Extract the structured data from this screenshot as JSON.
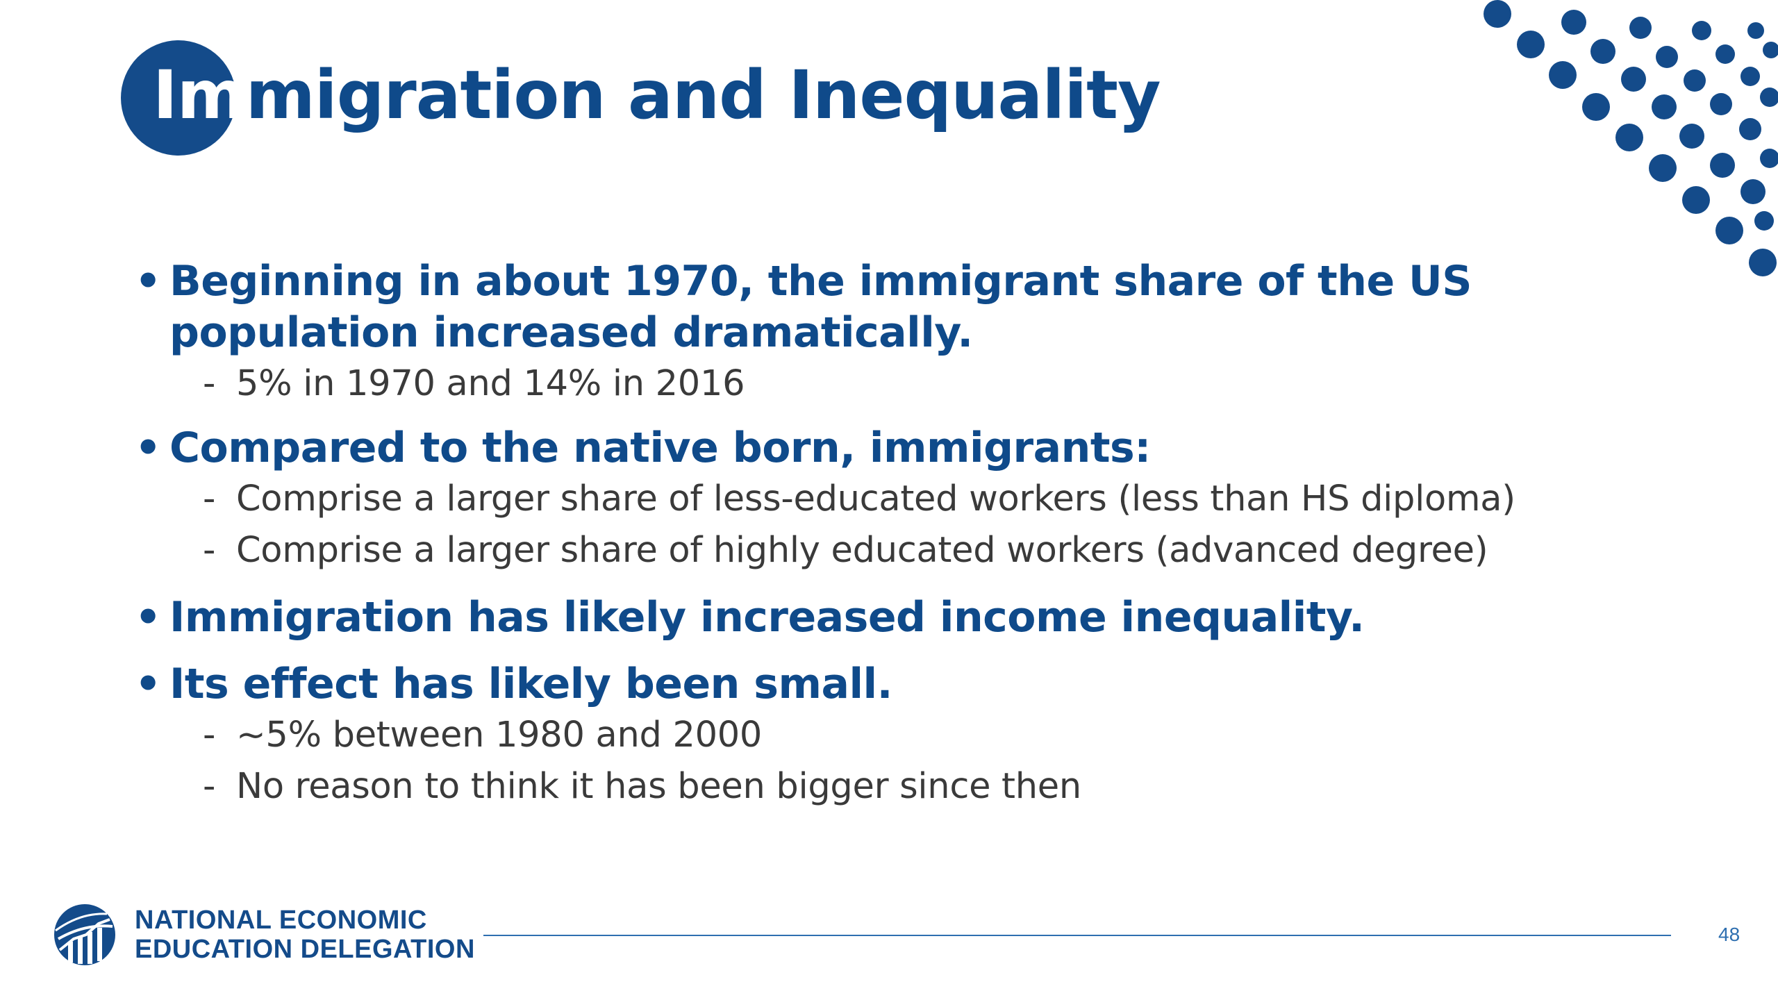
{
  "colors": {
    "accent": "#144b8a",
    "title_text": "#0f4a8a",
    "body_text": "#3a3a3a",
    "logo_text": "#144b8a",
    "rule": "#2e6fb0",
    "background": "#ffffff"
  },
  "title": {
    "highlight": "Im",
    "rest": "migration and Inequality"
  },
  "bullets": [
    {
      "text": "Beginning in about 1970, the immigrant share of the US population increased dramatically.",
      "subs": [
        "5% in 1970 and 14% in 2016"
      ]
    },
    {
      "text": "Compared to the native born, immigrants:",
      "subs": [
        "Comprise a larger share of less-educated workers (less than HS diploma)",
        "Comprise a larger share of highly educated workers (advanced degree)"
      ]
    },
    {
      "text": "Immigration has likely increased income inequality.",
      "subs": []
    },
    {
      "text": "Its effect has likely been small.",
      "subs": [
        "~5% between 1980 and 2000",
        "No reason to think it has been bigger since then"
      ]
    }
  ],
  "bullet_glyph": "•",
  "sub_glyph": "-",
  "footer": {
    "org_line1": "NATIONAL ECONOMIC",
    "org_line2": "EDUCATION DELEGATION",
    "page_number": "48"
  },
  "icons": {
    "logo": "globe-chart-logo-icon",
    "decor": "dot-grid-decoration"
  }
}
